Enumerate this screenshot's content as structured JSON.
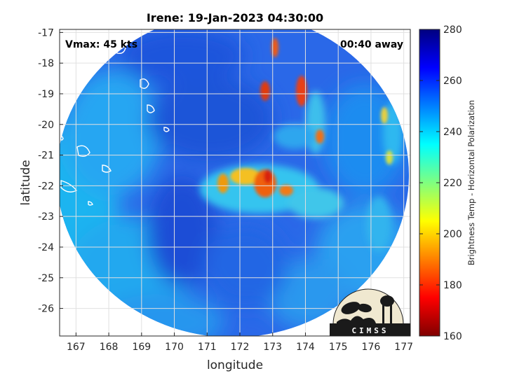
{
  "title": "Irene: 19-Jan-2023 04:30:00",
  "vmax_label": "Vmax: 45 kts",
  "time_label": "00:40 away",
  "xlabel": "longitude",
  "ylabel": "latitude",
  "x_ticks": [
    "167",
    "168",
    "169",
    "170",
    "171",
    "172",
    "173",
    "174",
    "175",
    "176",
    "177"
  ],
  "y_ticks": [
    "-17",
    "-18",
    "-19",
    "-20",
    "-21",
    "-22",
    "-23",
    "-24",
    "-25",
    "-26"
  ],
  "colorbar": {
    "label": "Brightness Temp - Horizontal Polarization",
    "ticks": [
      "280",
      "260",
      "240",
      "220",
      "200",
      "180",
      "160"
    ],
    "range": [
      160,
      280
    ],
    "colormap": "jet"
  },
  "logo": {
    "text": "CIMSS"
  },
  "chart_data": {
    "type": "heatmap",
    "title": "Irene: 19-Jan-2023 04:30:00",
    "xlabel": "longitude",
    "ylabel": "latitude",
    "xlim": [
      166.5,
      177.2
    ],
    "ylim": [
      -26.9,
      -16.9
    ],
    "zlim": [
      160,
      280
    ],
    "grid": true,
    "annotations": [
      "Vmax: 45 kts",
      "00:40 away"
    ]
  }
}
